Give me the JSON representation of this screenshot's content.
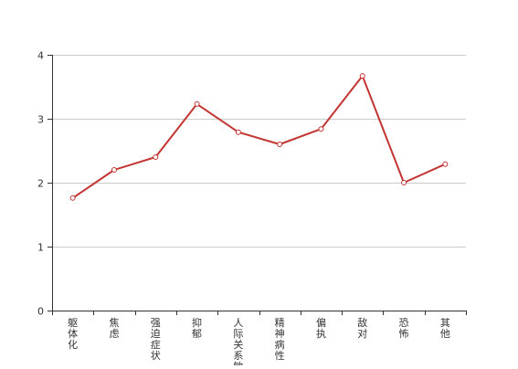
{
  "chart_data": {
    "type": "line",
    "categories": [
      "躯体化",
      "焦虑",
      "强迫症状",
      "抑郁",
      "人际关系敏感",
      "精神病性",
      "偏执",
      "敌对",
      "恐怖",
      "其他"
    ],
    "series": [
      {
        "values": [
          1.76,
          2.2,
          2.4,
          3.23,
          2.79,
          2.6,
          2.84,
          3.67,
          2.0,
          2.29
        ],
        "color": "#c23531"
      }
    ],
    "y_ticks": [
      "0",
      "1",
      "2",
      "3",
      "4"
    ],
    "ylim": [
      0,
      4
    ],
    "grid": true,
    "legend": "none"
  }
}
